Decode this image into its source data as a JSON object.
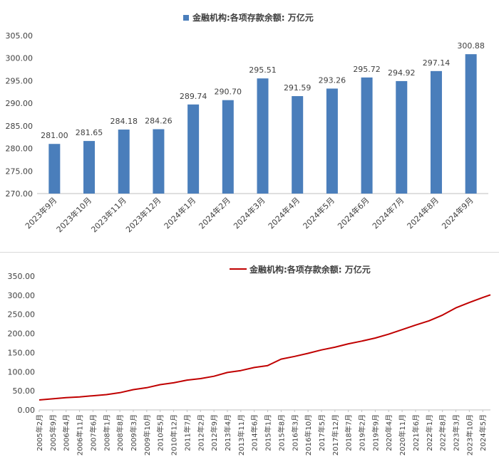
{
  "chart_data": [
    {
      "type": "bar",
      "title": "",
      "xlabel": "",
      "ylabel": "",
      "legend": {
        "position": "top",
        "entries": [
          "金融机构:各项存款余额: 万亿元"
        ]
      },
      "color": "#4a7ebb",
      "categories": [
        "2023年9月",
        "2023年10月",
        "2023年11月",
        "2023年12月",
        "2024年1月",
        "2024年2月",
        "2024年3月",
        "2024年4月",
        "2024年5月",
        "2024年6月",
        "2024年7月",
        "2024年8月",
        "2024年9月"
      ],
      "series": [
        {
          "name": "金融机构:各项存款余额: 万亿元",
          "values": [
            281.0,
            281.65,
            284.18,
            284.26,
            289.74,
            290.7,
            295.51,
            291.59,
            293.26,
            295.72,
            294.92,
            297.14,
            300.88
          ]
        }
      ],
      "data_labels": [
        "281.00",
        "281.65",
        "284.18",
        "284.26",
        "289.74",
        "290.70",
        "295.51",
        "291.59",
        "293.26",
        "295.72",
        "294.92",
        "297.14",
        "300.88"
      ],
      "ylim": [
        270,
        305
      ],
      "yticks": [
        "270.00",
        "275.00",
        "280.00",
        "285.00",
        "290.00",
        "295.00",
        "300.00",
        "305.00"
      ],
      "grid": false
    },
    {
      "type": "line",
      "title": "",
      "xlabel": "",
      "ylabel": "",
      "legend": {
        "position": "top",
        "entries": [
          "金融机构:各项存款余额: 万亿元"
        ]
      },
      "color": "#c00000",
      "ylim": [
        0,
        350
      ],
      "yticks": [
        "0.00",
        "50.00",
        "100.00",
        "150.00",
        "200.00",
        "250.00",
        "300.00",
        "350.00"
      ],
      "xticks": [
        "2005年2月",
        "2005年9月",
        "2006年4月",
        "2006年11月",
        "2007年6月",
        "2008年1月",
        "2008年8月",
        "2009年3月",
        "2009年10月",
        "2010年5月",
        "2010年12月",
        "2011年7月",
        "2012年2月",
        "2012年9月",
        "2013年4月",
        "2013年11月",
        "2014年6月",
        "2015年1月",
        "2015年8月",
        "2016年3月",
        "2016年10月",
        "2017年5月",
        "2017年12月",
        "2018年7月",
        "2019年2月",
        "2019年9月",
        "2020年4月",
        "2020年11月",
        "2021年6月",
        "2022年1月",
        "2022年8月",
        "2023年3月",
        "2023年10月",
        "2024年5月"
      ],
      "x_range": [
        "2005年2月",
        "2024年9月"
      ],
      "series": [
        {
          "name": "金融机构:各项存款余额: 万亿元",
          "x": [
            "2005年2月",
            "2005年9月",
            "2006年4月",
            "2006年11月",
            "2007年6月",
            "2008年1月",
            "2008年8月",
            "2009年3月",
            "2009年10月",
            "2010年5月",
            "2010年12月",
            "2011年7月",
            "2012年2月",
            "2012年9月",
            "2013年4月",
            "2013年11月",
            "2014年6月",
            "2015年1月",
            "2015年8月",
            "2016年3月",
            "2016年10月",
            "2017年5月",
            "2017年12月",
            "2018年7月",
            "2019年2月",
            "2019年9月",
            "2020年4月",
            "2020年11月",
            "2021年6月",
            "2022年1月",
            "2022年8月",
            "2023年3月",
            "2023年10月",
            "2024年5月",
            "2024年9月"
          ],
          "values": [
            26,
            29,
            32,
            34,
            37,
            40,
            45,
            53,
            58,
            66,
            71,
            78,
            82,
            88,
            98,
            103,
            111,
            116,
            133,
            140,
            148,
            157,
            164,
            173,
            180,
            188,
            198,
            210,
            222,
            233,
            248,
            267,
            281,
            294,
            301
          ]
        }
      ],
      "grid": false
    }
  ]
}
